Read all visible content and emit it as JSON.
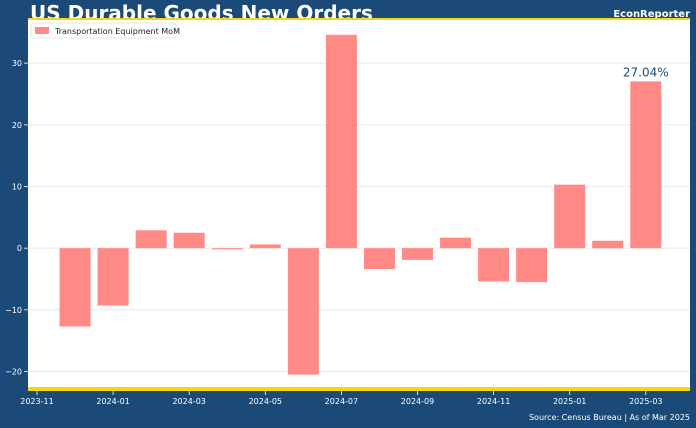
{
  "header": {
    "title": "US Durable Goods New Orders",
    "brand": "EconReporter"
  },
  "footer": {
    "source": "Source: Census Bureau | As of Mar 2025"
  },
  "colors": {
    "background": "#1c4a78",
    "plot_bg": "#ffffff",
    "bar": "#ff8a85",
    "accent_border": "#f5d80f",
    "label": "#1c4a78"
  },
  "chart_data": {
    "type": "bar",
    "title": "US Durable Goods New Orders",
    "xlabel": "",
    "ylabel": "",
    "categories": [
      "2023-12",
      "2024-01",
      "2024-02",
      "2024-03",
      "2024-04",
      "2024-05",
      "2024-06",
      "2024-07",
      "2024-08",
      "2024-09",
      "2024-10",
      "2024-11",
      "2024-12",
      "2025-01",
      "2025-02",
      "2025-03"
    ],
    "series": [
      {
        "name": "Transportation Equipment MoM",
        "values": [
          -12.7,
          -9.3,
          2.9,
          2.5,
          -0.2,
          0.6,
          -20.5,
          34.6,
          -3.4,
          -1.9,
          1.7,
          -5.4,
          -5.5,
          10.3,
          1.2,
          27.04
        ]
      }
    ],
    "ylim": [
      -23,
      37
    ],
    "yticks": [
      -20,
      -10,
      0,
      10,
      20,
      30
    ],
    "ytick_labels": [
      "−20",
      "−10",
      "0",
      "10",
      "20",
      "30"
    ],
    "xticks": [
      "2023-11",
      "2024-01",
      "2024-03",
      "2024-05",
      "2024-07",
      "2024-09",
      "2024-11",
      "2025-01",
      "2025-03"
    ],
    "annotations": [
      {
        "category": "2025-03",
        "text": "27.04%"
      }
    ],
    "legend": {
      "position": "top-left",
      "entries": [
        "Transportation Equipment MoM"
      ]
    },
    "grid": true
  }
}
